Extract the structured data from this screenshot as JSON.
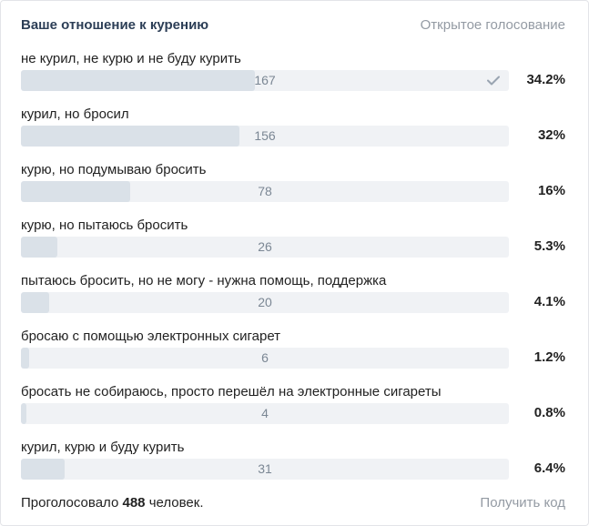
{
  "poll": {
    "title": "Ваше отношение к курению",
    "type_label": "Открытое голосование",
    "options": [
      {
        "label": "не курил, не курю и не буду курить",
        "count": "167",
        "percent": "34.2%",
        "fraction": 0.342,
        "checked": true
      },
      {
        "label": "курил, но бросил",
        "count": "156",
        "percent": "32%",
        "fraction": 0.32,
        "checked": false
      },
      {
        "label": "курю, но подумываю бросить",
        "count": "78",
        "percent": "16%",
        "fraction": 0.16,
        "checked": false
      },
      {
        "label": "курю, но пытаюсь бросить",
        "count": "26",
        "percent": "5.3%",
        "fraction": 0.053,
        "checked": false
      },
      {
        "label": "пытаюсь бросить, но не могу - нужна помощь, поддержка",
        "count": "20",
        "percent": "4.1%",
        "fraction": 0.041,
        "checked": false
      },
      {
        "label": "бросаю с помощью электронных сигарет",
        "count": "6",
        "percent": "1.2%",
        "fraction": 0.012,
        "checked": false
      },
      {
        "label": "бросать не собираюсь, просто перешёл на электронные сигареты",
        "count": "4",
        "percent": "0.8%",
        "fraction": 0.008,
        "checked": false
      },
      {
        "label": "курил, курю и буду курить",
        "count": "31",
        "percent": "6.4%",
        "fraction": 0.064,
        "checked": false
      }
    ],
    "footer_prefix": "Проголосовало",
    "total_votes": "488",
    "footer_suffix": "человек.",
    "get_code_label": "Получить код"
  },
  "colors": {
    "bar_fill": "#dae1e8",
    "bar_track": "#f0f2f5",
    "check": "#99a4b1",
    "muted_text": "#939aa3"
  }
}
